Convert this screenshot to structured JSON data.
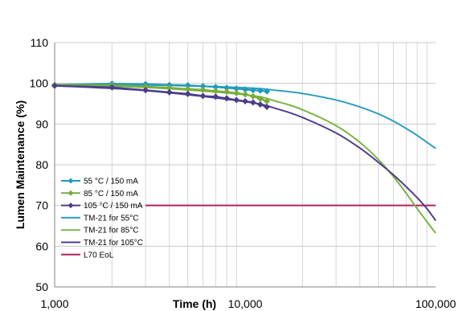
{
  "chart_data": {
    "type": "line",
    "title": "",
    "xlabel": "Time (h)",
    "ylabel": "Lumen Maintenance (%)",
    "x_scale": "log",
    "xlim": [
      1000,
      100000
    ],
    "ylim": [
      50,
      110
    ],
    "x_ticks": [
      1000,
      10000,
      100000
    ],
    "x_tick_labels": [
      "1,000",
      "10,000",
      "100,000"
    ],
    "y_ticks": [
      50,
      60,
      70,
      80,
      90,
      100,
      110
    ],
    "y_tick_labels": [
      "50",
      "60",
      "70",
      "80",
      "90",
      "100",
      "110"
    ],
    "grid": "horizontal major, vertical minor (log decades)",
    "legend_position": "lower-left",
    "series": [
      {
        "name": "55 °C / 150 mA",
        "kind": "measured",
        "color": "#1f9bbb",
        "marker": "diamond",
        "x": [
          1000,
          2000,
          3000,
          4000,
          5000,
          6000,
          7000,
          8000,
          9000,
          10000,
          11000,
          12000,
          13000
        ],
        "y": [
          99.6,
          99.9,
          99.8,
          99.6,
          99.5,
          99.3,
          99.1,
          98.9,
          98.7,
          98.5,
          98.3,
          98.2,
          98.0
        ]
      },
      {
        "name": "85 °C / 150 mA",
        "kind": "measured",
        "color": "#79ad3a",
        "marker": "diamond",
        "x": [
          1000,
          2000,
          3000,
          4000,
          5000,
          6000,
          7000,
          8000,
          9000,
          10000,
          11000,
          12000,
          13000
        ],
        "y": [
          99.6,
          99.5,
          99.2,
          98.9,
          98.6,
          98.4,
          98.1,
          97.9,
          97.6,
          97.3,
          96.8,
          96.2,
          95.6
        ]
      },
      {
        "name": "105 °C / 150 mA",
        "kind": "measured",
        "color": "#4b3d8c",
        "marker": "diamond",
        "x": [
          1000,
          2000,
          3000,
          4000,
          5000,
          6000,
          7000,
          8000,
          9000,
          10000,
          11000,
          12000,
          13000
        ],
        "y": [
          99.4,
          99.0,
          98.3,
          97.8,
          97.4,
          96.9,
          96.7,
          96.3,
          95.9,
          95.6,
          95.3,
          94.8,
          94.2
        ]
      },
      {
        "name": "TM-21 for 55°C",
        "kind": "projection",
        "color": "#2c9fc0",
        "x": [
          1000,
          3000,
          10000,
          15000,
          20000,
          30000,
          40000,
          50000,
          60000,
          70000,
          80000,
          100000
        ],
        "y": [
          99.7,
          99.6,
          98.9,
          98.2,
          97.5,
          95.9,
          94.2,
          92.5,
          90.7,
          88.9,
          87.2,
          84.0
        ]
      },
      {
        "name": "TM-21 for 85°C",
        "kind": "projection",
        "color": "#7ab547",
        "x": [
          1000,
          3000,
          10000,
          15000,
          20000,
          30000,
          40000,
          50000,
          60000,
          70000,
          80000,
          90000,
          100000
        ],
        "y": [
          99.6,
          99.0,
          97.2,
          95.4,
          93.5,
          89.6,
          85.5,
          81.3,
          77.1,
          73.0,
          69.2,
          66.0,
          63.2
        ]
      },
      {
        "name": "TM-21 for 105°C",
        "kind": "projection",
        "color": "#4f3f8f",
        "x": [
          1000,
          3000,
          10000,
          15000,
          20000,
          30000,
          40000,
          50000,
          60000,
          70000,
          80000,
          90000,
          100000
        ],
        "y": [
          99.4,
          98.2,
          95.5,
          93.6,
          91.6,
          87.8,
          84.1,
          80.6,
          77.5,
          74.6,
          71.9,
          69.2,
          66.3
        ]
      },
      {
        "name": "L70 EoL",
        "kind": "threshold",
        "color": "#b2215f",
        "x": [
          3000,
          100000
        ],
        "y": [
          70,
          70
        ]
      }
    ]
  }
}
